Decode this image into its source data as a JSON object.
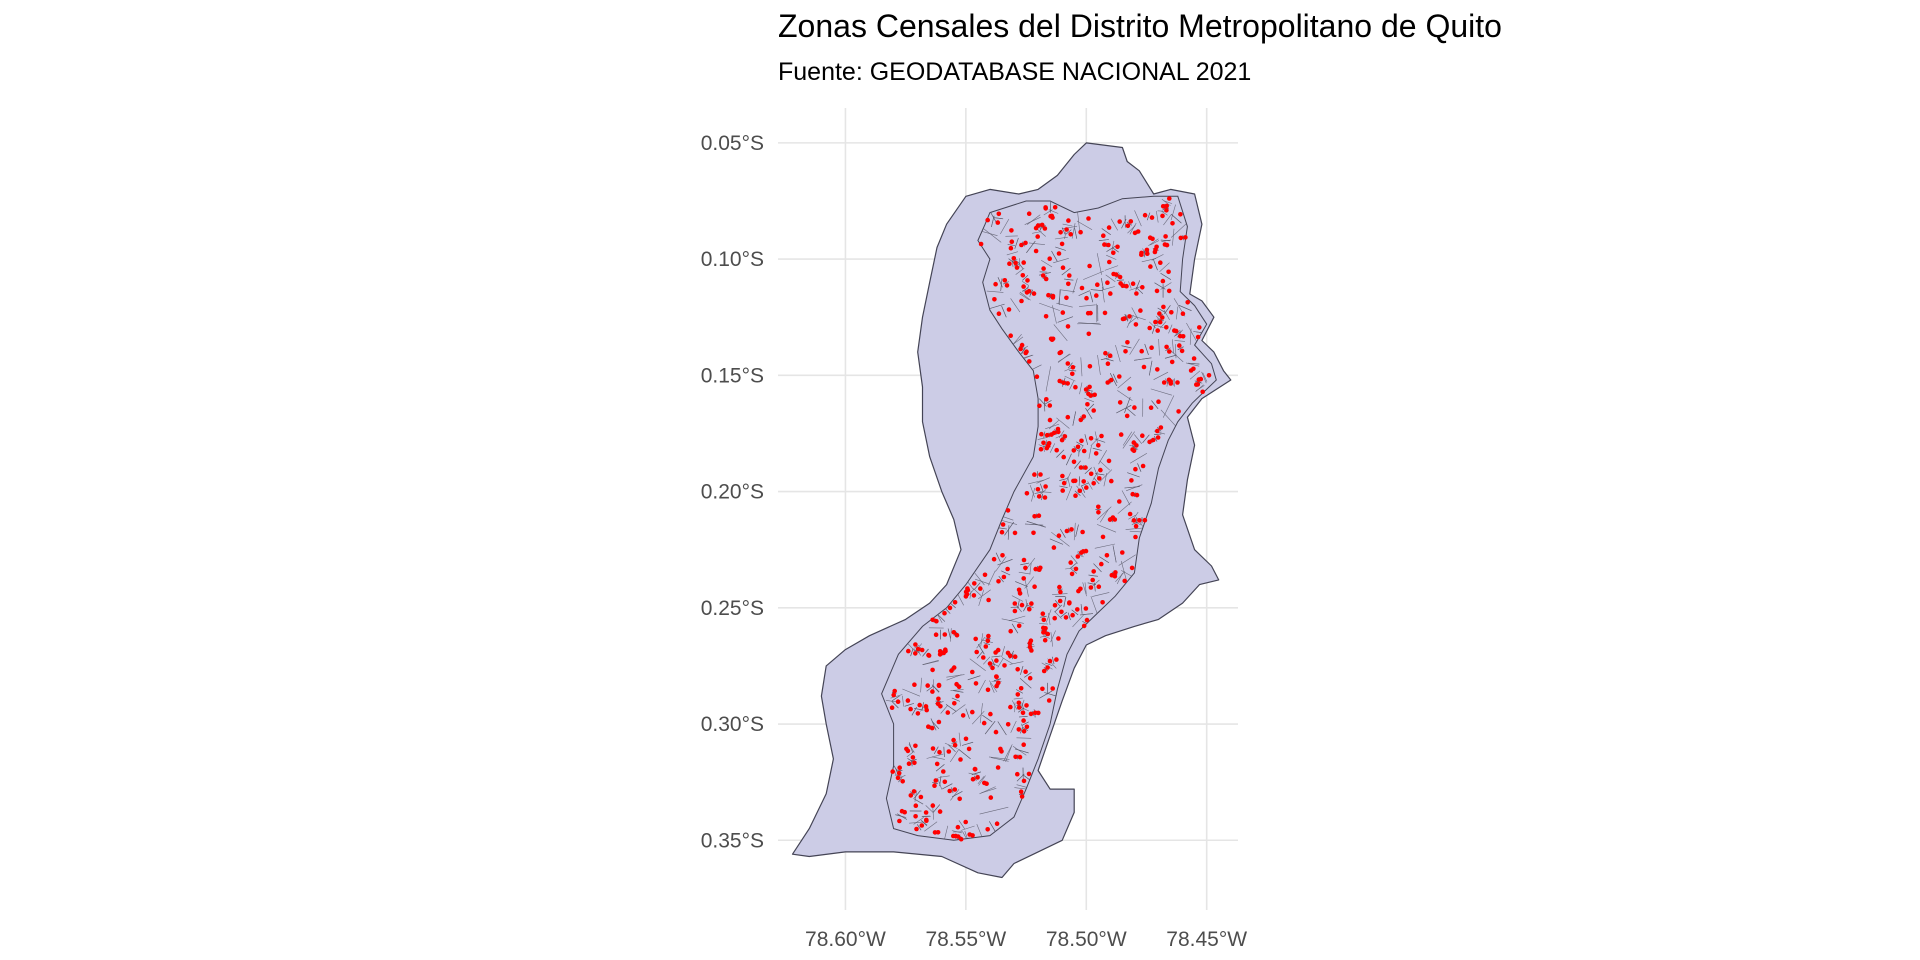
{
  "title": "Zonas Censales del Distrito Metropolitano de Quito",
  "subtitle": "Fuente: GEODATABASE NACIONAL 2021",
  "colors": {
    "district_fill": "#cccce6",
    "outline": "#444455",
    "zone_lines": "#5a5a6a",
    "centroid_points": "#ff0000",
    "grid": "#e5e5e5"
  },
  "chart_data": {
    "type": "map",
    "x_axis": {
      "range": [
        -78.628,
        -78.437
      ],
      "ticks": [
        {
          "value": -78.6,
          "label": "78.60°W"
        },
        {
          "value": -78.55,
          "label": "78.55°W"
        },
        {
          "value": -78.5,
          "label": "78.50°W"
        },
        {
          "value": -78.45,
          "label": "78.45°W"
        }
      ]
    },
    "y_axis": {
      "range": [
        -0.38,
        -0.035
      ],
      "ticks": [
        {
          "value": -0.05,
          "label": "0.05°S"
        },
        {
          "value": -0.1,
          "label": "0.10°S"
        },
        {
          "value": -0.15,
          "label": "0.15°S"
        },
        {
          "value": -0.2,
          "label": "0.20°S"
        },
        {
          "value": -0.25,
          "label": "0.25°S"
        },
        {
          "value": -0.3,
          "label": "0.30°S"
        },
        {
          "value": -0.35,
          "label": "0.35°S"
        }
      ]
    },
    "grid": true,
    "layers": [
      {
        "name": "district-boundary",
        "fill": "#cccce6",
        "coordinates": [
          [
            -78.5,
            -0.05
          ],
          [
            -78.485,
            -0.052
          ],
          [
            -78.483,
            -0.058
          ],
          [
            -78.478,
            -0.062
          ],
          [
            -78.472,
            -0.072
          ],
          [
            -78.465,
            -0.07
          ],
          [
            -78.455,
            -0.072
          ],
          [
            -78.452,
            -0.085
          ],
          [
            -78.455,
            -0.1
          ],
          [
            -78.457,
            -0.115
          ],
          [
            -78.452,
            -0.118
          ],
          [
            -78.447,
            -0.125
          ],
          [
            -78.452,
            -0.135
          ],
          [
            -78.447,
            -0.14
          ],
          [
            -78.443,
            -0.148
          ],
          [
            -78.44,
            -0.152
          ],
          [
            -78.452,
            -0.16
          ],
          [
            -78.458,
            -0.168
          ],
          [
            -78.455,
            -0.18
          ],
          [
            -78.458,
            -0.195
          ],
          [
            -78.46,
            -0.21
          ],
          [
            -78.455,
            -0.225
          ],
          [
            -78.448,
            -0.232
          ],
          [
            -78.445,
            -0.238
          ],
          [
            -78.453,
            -0.24
          ],
          [
            -78.46,
            -0.248
          ],
          [
            -78.47,
            -0.255
          ],
          [
            -78.48,
            -0.258
          ],
          [
            -78.492,
            -0.262
          ],
          [
            -78.5,
            -0.266
          ],
          [
            -78.505,
            -0.276
          ],
          [
            -78.51,
            -0.29
          ],
          [
            -78.515,
            -0.305
          ],
          [
            -78.52,
            -0.32
          ],
          [
            -78.515,
            -0.328
          ],
          [
            -78.505,
            -0.328
          ],
          [
            -78.505,
            -0.338
          ],
          [
            -78.51,
            -0.35
          ],
          [
            -78.52,
            -0.355
          ],
          [
            -78.53,
            -0.36
          ],
          [
            -78.535,
            -0.366
          ],
          [
            -78.545,
            -0.364
          ],
          [
            -78.56,
            -0.357
          ],
          [
            -78.58,
            -0.355
          ],
          [
            -78.6,
            -0.355
          ],
          [
            -78.615,
            -0.357
          ],
          [
            -78.622,
            -0.356
          ],
          [
            -78.615,
            -0.345
          ],
          [
            -78.608,
            -0.33
          ],
          [
            -78.605,
            -0.315
          ],
          [
            -78.608,
            -0.3
          ],
          [
            -78.61,
            -0.288
          ],
          [
            -78.608,
            -0.275
          ],
          [
            -78.6,
            -0.268
          ],
          [
            -78.59,
            -0.262
          ],
          [
            -78.575,
            -0.255
          ],
          [
            -78.565,
            -0.248
          ],
          [
            -78.558,
            -0.24
          ],
          [
            -78.552,
            -0.225
          ],
          [
            -78.555,
            -0.212
          ],
          [
            -78.56,
            -0.2
          ],
          [
            -78.565,
            -0.185
          ],
          [
            -78.568,
            -0.17
          ],
          [
            -78.568,
            -0.155
          ],
          [
            -78.57,
            -0.14
          ],
          [
            -78.568,
            -0.125
          ],
          [
            -78.565,
            -0.11
          ],
          [
            -78.562,
            -0.095
          ],
          [
            -78.558,
            -0.085
          ],
          [
            -78.55,
            -0.073
          ],
          [
            -78.54,
            -0.07
          ],
          [
            -78.528,
            -0.072
          ],
          [
            -78.52,
            -0.07
          ],
          [
            -78.512,
            -0.064
          ],
          [
            -78.505,
            -0.055
          ]
        ]
      },
      {
        "name": "urban-census-zones",
        "fill": "#cccce6",
        "coordinates": [
          [
            -78.54,
            -0.08
          ],
          [
            -78.525,
            -0.075
          ],
          [
            -78.515,
            -0.075
          ],
          [
            -78.505,
            -0.08
          ],
          [
            -78.495,
            -0.078
          ],
          [
            -78.485,
            -0.074
          ],
          [
            -78.472,
            -0.073
          ],
          [
            -78.462,
            -0.073
          ],
          [
            -78.458,
            -0.086
          ],
          [
            -78.46,
            -0.1
          ],
          [
            -78.461,
            -0.114
          ],
          [
            -78.455,
            -0.12
          ],
          [
            -78.45,
            -0.128
          ],
          [
            -78.455,
            -0.137
          ],
          [
            -78.448,
            -0.145
          ],
          [
            -78.446,
            -0.152
          ],
          [
            -78.456,
            -0.162
          ],
          [
            -78.462,
            -0.17
          ],
          [
            -78.466,
            -0.178
          ],
          [
            -78.47,
            -0.19
          ],
          [
            -78.473,
            -0.205
          ],
          [
            -78.478,
            -0.22
          ],
          [
            -78.48,
            -0.235
          ],
          [
            -78.488,
            -0.245
          ],
          [
            -78.495,
            -0.252
          ],
          [
            -78.503,
            -0.26
          ],
          [
            -78.508,
            -0.27
          ],
          [
            -78.512,
            -0.285
          ],
          [
            -78.515,
            -0.3
          ],
          [
            -78.52,
            -0.315
          ],
          [
            -78.525,
            -0.328
          ],
          [
            -78.53,
            -0.34
          ],
          [
            -78.54,
            -0.348
          ],
          [
            -78.555,
            -0.35
          ],
          [
            -78.57,
            -0.348
          ],
          [
            -78.58,
            -0.345
          ],
          [
            -78.583,
            -0.332
          ],
          [
            -78.58,
            -0.318
          ],
          [
            -78.58,
            -0.3
          ],
          [
            -78.585,
            -0.287
          ],
          [
            -78.578,
            -0.27
          ],
          [
            -78.568,
            -0.258
          ],
          [
            -78.558,
            -0.25
          ],
          [
            -78.55,
            -0.24
          ],
          [
            -78.54,
            -0.225
          ],
          [
            -78.535,
            -0.212
          ],
          [
            -78.53,
            -0.2
          ],
          [
            -78.522,
            -0.185
          ],
          [
            -78.52,
            -0.172
          ],
          [
            -78.52,
            -0.16
          ],
          [
            -78.522,
            -0.148
          ],
          [
            -78.528,
            -0.14
          ],
          [
            -78.535,
            -0.13
          ],
          [
            -78.54,
            -0.122
          ],
          [
            -78.543,
            -0.11
          ],
          [
            -78.54,
            -0.1
          ],
          [
            -78.545,
            -0.092
          ],
          [
            -78.542,
            -0.085
          ]
        ]
      }
    ],
    "points": {
      "name": "census-zone-centroids",
      "color": "#ff0000",
      "count": 560
    }
  }
}
